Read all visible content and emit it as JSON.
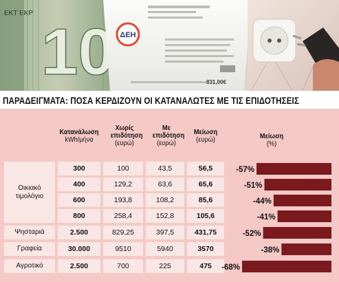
{
  "photo": {
    "banknote_text": "EKT EKP",
    "banknote_value": "10",
    "logo_text": "ΔEH",
    "bill_amount": "831,00€"
  },
  "headline": "ΠΑΡΑΔΕΙΓΜΑΤΑ: ΠΟΣΑ ΚΕΡΔΙΖΟΥΝ ΟΙ ΚΑΤΑΝΑΛΩΤΕΣ ΜΕ ΤΙΣ ΕΠΙΔΟΤΗΣΕΙΣ",
  "headers": {
    "consumption": {
      "title": "Κατανάλωση",
      "unit": "kWh/μήνα"
    },
    "without": {
      "title": "Χωρίς επιδότηση",
      "unit": "(ευρώ)"
    },
    "with": {
      "title": "Με επιδότηση",
      "unit": "(ευρώ)"
    },
    "reduction": {
      "title": "Μείωση",
      "unit": "(ευρώ)"
    },
    "reduction_pct": {
      "title": "Μείωση",
      "unit": "(%)"
    }
  },
  "categories": {
    "residential": "Οικιακό τιμολόγιο",
    "bakery": "Ψησταριά",
    "office": "Γραφεία",
    "agri": "Αγροτικό"
  },
  "chart_data": {
    "type": "table",
    "rows": [
      {
        "category": "Οικιακό τιμολόγιο",
        "consumption": "300",
        "without": "100",
        "with": "43,5",
        "reduction": "56,5",
        "pct": -57,
        "pct_label": "-57%"
      },
      {
        "category": "Οικιακό τιμολόγιο",
        "consumption": "400",
        "without": "129,2",
        "with": "63,6",
        "reduction": "65,6",
        "pct": -51,
        "pct_label": "-51%"
      },
      {
        "category": "Οικιακό τιμολόγιο",
        "consumption": "600",
        "without": "193,8",
        "with": "108,2",
        "reduction": "85,6",
        "pct": -44,
        "pct_label": "-44%"
      },
      {
        "category": "Οικιακό τιμολόγιο",
        "consumption": "800",
        "without": "258,4",
        "with": "152,8",
        "reduction": "105,6",
        "pct": -41,
        "pct_label": "-41%"
      },
      {
        "category": "Ψησταριά",
        "consumption": "2.500",
        "without": "829,25",
        "with": "397,5",
        "reduction": "431,75",
        "pct": -52,
        "pct_label": "-52%"
      },
      {
        "category": "Γραφεία",
        "consumption": "30.000",
        "without": "9510",
        "with": "5940",
        "reduction": "3570",
        "pct": -38,
        "pct_label": "-38%"
      },
      {
        "category": "Αγροτικό",
        "consumption": "2.500",
        "without": "700",
        "with": "225",
        "reduction": "475",
        "pct": -68,
        "pct_label": "-68%"
      }
    ],
    "bar_color": "#7a1a1e",
    "max_pct": 68
  },
  "colors": {
    "panel": "#f4c9c6",
    "cell": "#f8e7e5",
    "bar": "#7a1a1e"
  }
}
